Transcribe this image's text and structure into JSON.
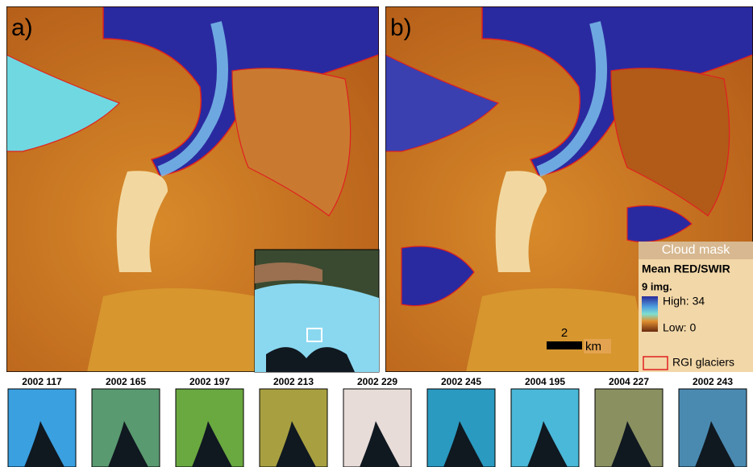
{
  "panels": [
    {
      "label": "a)"
    },
    {
      "label": "b)"
    }
  ],
  "legend": {
    "title": "Cloud mask",
    "subtitle": "Mean RED/SWIR",
    "count": "9 img.",
    "high": "High: 34",
    "low": "Low: 0",
    "outline": "RGI glaciers"
  },
  "scale_bar": {
    "length": "2",
    "unit": "km"
  },
  "thumbnails": [
    {
      "label": "2002 117"
    },
    {
      "label": "2002 165"
    },
    {
      "label": "2002 197"
    },
    {
      "label": "2002 213"
    },
    {
      "label": "2002 229"
    },
    {
      "label": "2002 245"
    },
    {
      "label": "2004 195"
    },
    {
      "label": "2004 227"
    },
    {
      "label": "2002 243"
    }
  ]
}
